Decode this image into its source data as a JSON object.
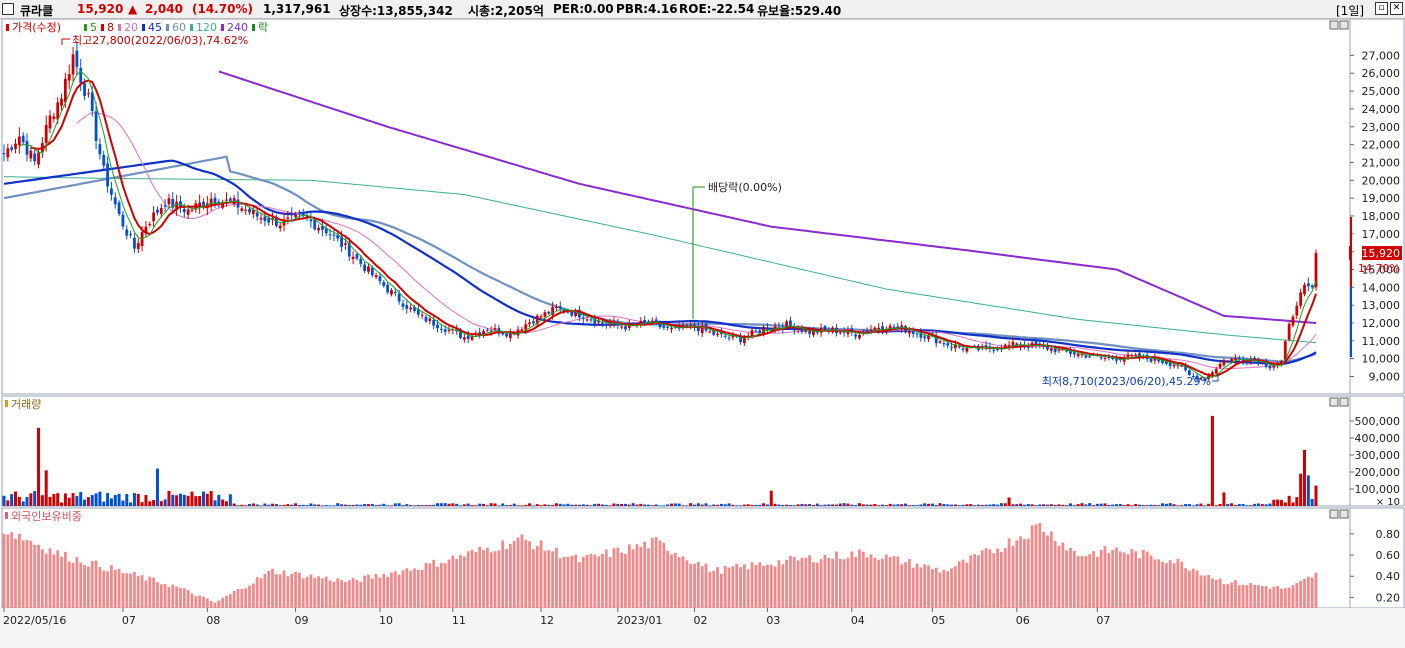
{
  "header": {
    "stock_name": "큐라클",
    "price": "15,920",
    "change_arrow": "▲",
    "change": "2,040",
    "change_pct": "(14.70%)",
    "volume": "1,317,961",
    "shares": "상장수:13,855,342",
    "market_cap": "시총:2,205억",
    "per": "PER:0.00",
    "pbr": "PBR:4.16",
    "roe": "ROE:-22.54",
    "retention": "유보율:529.40",
    "period": "[1일]",
    "colors": {
      "up": "#d00000",
      "down": "#0050d0"
    }
  },
  "price_panel": {
    "legend": [
      {
        "text": "가격(수정)",
        "color": "#d00000"
      },
      {
        "text": "5",
        "color": "#21a021"
      },
      {
        "text": "8",
        "color": "#d00000"
      },
      {
        "text": "20",
        "color": "#e070c0"
      },
      {
        "text": "45",
        "color": "#1030c8"
      },
      {
        "text": "60",
        "color": "#7090c0"
      },
      {
        "text": "120",
        "color": "#3cb08a"
      },
      {
        "text": "240",
        "color": "#8a2bd0"
      },
      {
        "text": "락",
        "color": "#1a8a1a"
      }
    ],
    "y_ticks": [
      "27,000",
      "26,000",
      "25,000",
      "24,000",
      "23,000",
      "22,000",
      "21,000",
      "20,000",
      "19,000",
      "18,000",
      "17,000",
      "16,000",
      "15,000",
      "14,000",
      "13,000",
      "12,000",
      "11,000",
      "10,000",
      "9,000"
    ],
    "high_annotation": "최고27,800(2022/06/03),74.62%",
    "low_annotation": "최저8,710(2023/06/20),45.29%",
    "dividend_annotation": "배당락(0.00%)",
    "current_price_label": "15,920",
    "current_pct_label": "14.70%"
  },
  "volume_panel": {
    "title": "거래량",
    "y_ticks": [
      "500,000",
      "400,000",
      "300,000",
      "200,000",
      "100,000"
    ],
    "unit": "× 10"
  },
  "foreign_panel": {
    "title": "외국인보유비중",
    "y_ticks": [
      "0.80",
      "0.60",
      "0.40",
      "0.20"
    ]
  },
  "x_axis": {
    "ticks": [
      "2022/05/16",
      "07",
      "08",
      "09",
      "10",
      "11",
      "12",
      "2023/01",
      "02",
      "03",
      "04",
      "05",
      "06",
      "07"
    ]
  },
  "chart_data": {
    "type": "candlestick",
    "x_start": "2022-05-16",
    "x_end": "2023-07-24",
    "price_ylim": [
      8300,
      28200
    ],
    "volume_ylim": [
      0,
      600000
    ],
    "foreign_ylim": [
      0.1,
      0.95
    ],
    "moving_average_periods": [
      5,
      8,
      20,
      45,
      60,
      120,
      240
    ],
    "close_anchors": [
      [
        0,
        21500
      ],
      [
        4,
        22500
      ],
      [
        8,
        21000
      ],
      [
        12,
        23500
      ],
      [
        15,
        24800
      ],
      [
        18,
        27000
      ],
      [
        22,
        24500
      ],
      [
        26,
        20500
      ],
      [
        30,
        18000
      ],
      [
        34,
        16200
      ],
      [
        37,
        17500
      ],
      [
        42,
        18800
      ],
      [
        48,
        18300
      ],
      [
        54,
        19000
      ],
      [
        60,
        18700
      ],
      [
        66,
        18000
      ],
      [
        72,
        17600
      ],
      [
        78,
        17900
      ],
      [
        84,
        17200
      ],
      [
        90,
        16000
      ],
      [
        96,
        14700
      ],
      [
        102,
        13500
      ],
      [
        108,
        12400
      ],
      [
        114,
        11800
      ],
      [
        120,
        11200
      ],
      [
        126,
        11700
      ],
      [
        132,
        11400
      ],
      [
        138,
        12200
      ],
      [
        144,
        12800
      ],
      [
        150,
        12500
      ],
      [
        156,
        12000
      ],
      [
        162,
        11800
      ],
      [
        168,
        12000
      ],
      [
        174,
        11600
      ],
      [
        180,
        11800
      ],
      [
        186,
        11300
      ],
      [
        192,
        11100
      ],
      [
        198,
        11700
      ],
      [
        204,
        11900
      ],
      [
        210,
        11500
      ],
      [
        216,
        11600
      ],
      [
        222,
        11400
      ],
      [
        228,
        11800
      ],
      [
        234,
        11700
      ],
      [
        240,
        11300
      ],
      [
        246,
        10800
      ],
      [
        252,
        10500
      ],
      [
        258,
        10600
      ],
      [
        264,
        10800
      ],
      [
        270,
        10700
      ],
      [
        276,
        10400
      ],
      [
        282,
        10200
      ],
      [
        288,
        10000
      ],
      [
        294,
        10100
      ],
      [
        300,
        9950
      ],
      [
        306,
        9650
      ],
      [
        309,
        9050
      ],
      [
        313,
        8900
      ],
      [
        318,
        9900
      ],
      [
        322,
        10000
      ],
      [
        326,
        9950
      ],
      [
        330,
        9600
      ],
      [
        333,
        9800
      ],
      [
        335,
        11800
      ],
      [
        337,
        13200
      ],
      [
        339,
        13900
      ],
      [
        341,
        13880
      ],
      [
        342,
        15920
      ]
    ],
    "ma240_anchors": [
      [
        56,
        26100
      ],
      [
        100,
        23000
      ],
      [
        150,
        19800
      ],
      [
        200,
        17400
      ],
      [
        250,
        16100
      ],
      [
        290,
        15000
      ],
      [
        318,
        12400
      ],
      [
        342,
        12000
      ]
    ],
    "ma120_anchors": [
      [
        0,
        20200
      ],
      [
        30,
        20100
      ],
      [
        80,
        20000
      ],
      [
        120,
        19200
      ],
      [
        170,
        16900
      ],
      [
        230,
        13900
      ],
      [
        280,
        12200
      ],
      [
        320,
        11300
      ],
      [
        342,
        10900
      ]
    ],
    "volume_spikes": [
      [
        9,
        460000
      ],
      [
        11,
        210000
      ],
      [
        40,
        220000
      ],
      [
        200,
        90000
      ],
      [
        262,
        50000
      ],
      [
        315,
        530000
      ],
      [
        318,
        80000
      ],
      [
        339,
        330000
      ],
      [
        338,
        190000
      ],
      [
        340,
        180000
      ],
      [
        342,
        120000
      ]
    ],
    "foreign_anchors": [
      [
        0,
        0.85
      ],
      [
        15,
        0.6
      ],
      [
        30,
        0.45
      ],
      [
        45,
        0.3
      ],
      [
        55,
        0.15
      ],
      [
        70,
        0.45
      ],
      [
        90,
        0.35
      ],
      [
        110,
        0.5
      ],
      [
        135,
        0.75
      ],
      [
        150,
        0.55
      ],
      [
        170,
        0.72
      ],
      [
        185,
        0.45
      ],
      [
        205,
        0.55
      ],
      [
        225,
        0.62
      ],
      [
        245,
        0.45
      ],
      [
        260,
        0.68
      ],
      [
        270,
        0.88
      ],
      [
        280,
        0.6
      ],
      [
        290,
        0.65
      ],
      [
        305,
        0.55
      ],
      [
        318,
        0.35
      ],
      [
        335,
        0.28
      ],
      [
        342,
        0.42
      ]
    ]
  }
}
